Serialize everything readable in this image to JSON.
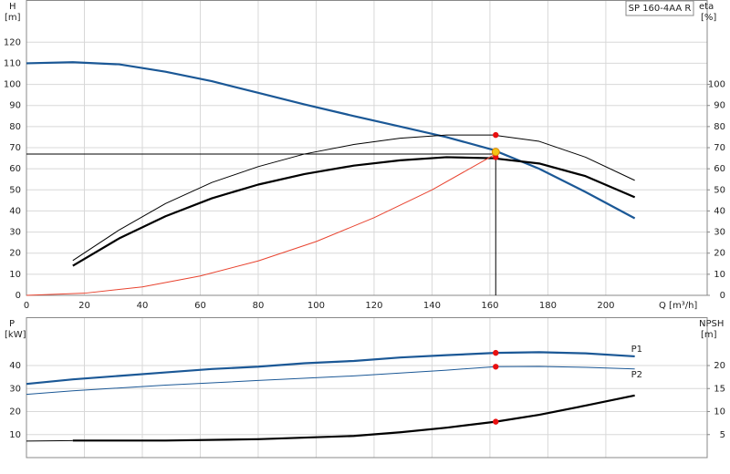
{
  "chart_data": [
    {
      "type": "line",
      "title": "SP 160-4AA R",
      "ylabel": "H",
      "yunit": "[m]",
      "y2label": "eta",
      "y2unit": "[%]",
      "xlabel": "Q [m³/h]",
      "xlim": [
        0,
        235
      ],
      "ylim": [
        0,
        140
      ],
      "y2lim": [
        0,
        140
      ],
      "xticks": [
        0,
        20,
        40,
        60,
        80,
        100,
        120,
        140,
        160,
        180,
        200
      ],
      "yticks": [
        0,
        10,
        20,
        30,
        40,
        50,
        60,
        70,
        80,
        90,
        100,
        110,
        120
      ],
      "y2ticks": [
        0,
        10,
        20,
        30,
        40,
        50,
        60,
        70,
        80,
        90,
        100
      ],
      "xtick_labels": true,
      "grid": true,
      "series": [
        {
          "color": "#1b5896",
          "style": "thick",
          "x": [
            0,
            16,
            32,
            48,
            64,
            80,
            96,
            113,
            129,
            145,
            161,
            177,
            193,
            210
          ],
          "values": [
            110,
            110.5,
            109.5,
            106,
            101.5,
            96,
            90.5,
            85,
            80,
            75,
            69,
            60,
            49,
            36.5
          ]
        },
        {
          "color": "#000000",
          "style": "thin",
          "axis": "y2",
          "x": [
            16,
            32,
            48,
            64,
            80,
            96,
            113,
            129,
            145,
            161,
            177,
            193,
            210
          ],
          "values": [
            16.5,
            31,
            43.5,
            53.5,
            61,
            67,
            71.5,
            74.5,
            76,
            76,
            73,
            65.5,
            54.5
          ]
        },
        {
          "color": "#000000",
          "style": "thick",
          "axis": "y2",
          "x": [
            16,
            32,
            48,
            64,
            80,
            96,
            113,
            129,
            145,
            161,
            177,
            193,
            210
          ],
          "values": [
            14,
            27,
            37.5,
            46,
            52.5,
            57.5,
            61.5,
            64,
            65.5,
            65,
            62.5,
            56.5,
            46.5
          ]
        },
        {
          "color": "#e8432f",
          "style": "thin",
          "x": [
            0,
            20,
            40,
            60,
            80,
            100,
            120,
            140,
            162
          ],
          "values": [
            0,
            1,
            4,
            9.2,
            16.3,
            25.5,
            36.8,
            50,
            67
          ]
        }
      ],
      "points": [
        {
          "color": "#e81010",
          "x": 162,
          "value": 76,
          "axis": "y2"
        },
        {
          "color": "#e81010",
          "x": 162,
          "value": 65.5,
          "axis": "y2"
        },
        {
          "color": "#f5c518",
          "x": 162,
          "value": 68
        }
      ],
      "guide": {
        "x": 162,
        "y": 67
      }
    },
    {
      "type": "line",
      "ylabel": "P",
      "yunit": "[kW]",
      "y2label": "NPSH",
      "y2unit": "[m]",
      "xlim": [
        0,
        235
      ],
      "ylim": [
        0,
        61
      ],
      "y2lim": [
        0,
        30.5
      ],
      "xticks": [
        0,
        20,
        40,
        60,
        80,
        100,
        120,
        140,
        160,
        180,
        200
      ],
      "yticks": [
        10,
        20,
        30,
        40
      ],
      "y2ticks": [
        5,
        10,
        15,
        20
      ],
      "xtick_labels": false,
      "grid": true,
      "series": [
        {
          "name": "P1",
          "color": "#1b5896",
          "style": "thick",
          "x": [
            0,
            16,
            32,
            48,
            64,
            80,
            96,
            113,
            129,
            145,
            162,
            177,
            193,
            210
          ],
          "values": [
            32,
            34,
            35.5,
            37,
            38.5,
            39.5,
            41,
            42,
            43.5,
            44.5,
            45.5,
            45.8,
            45.3,
            44
          ]
        },
        {
          "name": "P2",
          "color": "#1b5896",
          "style": "thin",
          "x": [
            0,
            16,
            48,
            80,
            113,
            145,
            162,
            177,
            193,
            210
          ],
          "values": [
            27.5,
            29,
            31.5,
            33.5,
            35.5,
            38,
            39.5,
            39.6,
            39.2,
            38.5
          ]
        },
        {
          "color": "#000000",
          "style": "thin",
          "axis": "y2",
          "x": [
            0,
            16
          ],
          "values": [
            3.6,
            3.7
          ]
        },
        {
          "color": "#000000",
          "style": "thick",
          "axis": "y2",
          "x": [
            16,
            48,
            80,
            113,
            129,
            145,
            162,
            177,
            193,
            210
          ],
          "values": [
            3.7,
            3.7,
            4,
            4.7,
            5.5,
            6.5,
            7.8,
            9.3,
            11.3,
            13.5
          ]
        }
      ],
      "points": [
        {
          "color": "#e81010",
          "x": 162,
          "value": 45.5
        },
        {
          "color": "#e81010",
          "x": 162,
          "value": 39.5
        },
        {
          "color": "#e81010",
          "x": 162,
          "value": 7.8,
          "axis": "y2"
        }
      ]
    }
  ]
}
